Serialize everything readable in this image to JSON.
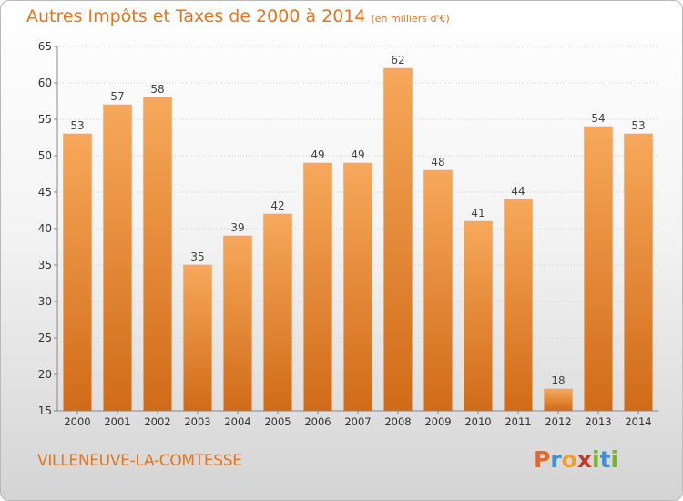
{
  "title": "Autres Impôts et Taxes de 2000 à 2014",
  "unit": "(en milliers d'€)",
  "commune": "VILLENEUVE-LA-COMTESSE",
  "logo": {
    "letters": [
      "P",
      "r",
      "o",
      "x",
      "i",
      "t",
      "i"
    ],
    "colors": [
      "#e8662a",
      "#3d8fd6",
      "#f0a02a",
      "#c03a2b",
      "#77b82a",
      "#3d8fd6",
      "#77b82a"
    ]
  },
  "colors": {
    "bar_light": "#f7a85a",
    "bar_dark": "#d06b18",
    "title": "#e0761f"
  },
  "chart_data": {
    "type": "bar",
    "categories": [
      "2000",
      "2001",
      "2002",
      "2003",
      "2004",
      "2005",
      "2006",
      "2007",
      "2008",
      "2009",
      "2010",
      "2011",
      "2012",
      "2013",
      "2014"
    ],
    "values": [
      53,
      57,
      58,
      35,
      39,
      42,
      49,
      49,
      62,
      48,
      41,
      44,
      18,
      54,
      53
    ],
    "ylim": [
      15,
      65
    ],
    "yticks": [
      15,
      20,
      25,
      30,
      35,
      40,
      45,
      50,
      55,
      60,
      65
    ],
    "grid": true
  }
}
